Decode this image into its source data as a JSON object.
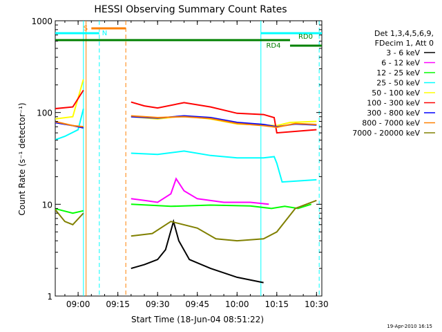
{
  "chart_data": {
    "type": "line",
    "title": "HESSI Observing Summary Count Rates",
    "xlabel": "Start Time (18-Jun-04 08:51:22)",
    "ylabel": "Count Rate (s⁻¹ detector⁻¹)",
    "yscale": "log",
    "ylim": [
      1,
      1000
    ],
    "xlim": [
      "08:51:22",
      "10:32:00"
    ],
    "x_ticks": [
      "09:00",
      "09:15",
      "09:30",
      "09:45",
      "10:00",
      "10:15",
      "10:30"
    ],
    "y_ticks": [
      "1",
      "10",
      "100",
      "1000"
    ],
    "footer": "19-Apr-2010 16:15",
    "legend": {
      "header": [
        "Det 1,3,4,5,6,9,",
        "FDecim 1, Att 0"
      ],
      "position": "right"
    },
    "series": [
      {
        "name": "3 - 6 keV",
        "color": "#000000",
        "points": [
          [
            "09:20",
            2.0
          ],
          [
            "09:25",
            2.2
          ],
          [
            "09:30",
            2.5
          ],
          [
            "09:33",
            3.2
          ],
          [
            "09:36",
            6.5
          ],
          [
            "09:38",
            4.0
          ],
          [
            "09:42",
            2.5
          ],
          [
            "09:50",
            2.0
          ],
          [
            "10:00",
            1.6
          ],
          [
            "10:10",
            1.4
          ]
        ]
      },
      {
        "name": "6 - 12 keV",
        "color": "#ff00ff",
        "points": [
          [
            "09:20",
            11.5
          ],
          [
            "09:25",
            11.0
          ],
          [
            "09:30",
            10.5
          ],
          [
            "09:35",
            13.0
          ],
          [
            "09:37",
            19.0
          ],
          [
            "09:40",
            14.0
          ],
          [
            "09:45",
            11.5
          ],
          [
            "09:55",
            10.5
          ],
          [
            "10:05",
            10.5
          ],
          [
            "10:12",
            10.0
          ]
        ]
      },
      {
        "name": "12 - 25 keV",
        "color": "#00ff00",
        "points": [
          [
            "08:51",
            9.0
          ],
          [
            "08:58",
            8.0
          ],
          [
            "09:02",
            8.5
          ],
          [
            "09:20",
            10.0
          ],
          [
            "09:35",
            9.5
          ],
          [
            "09:50",
            9.8
          ],
          [
            "10:05",
            9.6
          ],
          [
            "10:13",
            9.0
          ],
          [
            "10:18",
            9.5
          ],
          [
            "10:23",
            9.0
          ],
          [
            "10:28",
            10.0
          ]
        ]
      },
      {
        "name": "25 - 50 keV",
        "color": "#00ffff",
        "points": [
          [
            "08:51",
            50.0
          ],
          [
            "08:55",
            55.0
          ],
          [
            "09:00",
            65.0
          ],
          [
            "09:02",
            110.0
          ],
          [
            "09:20",
            36.0
          ],
          [
            "09:30",
            35.0
          ],
          [
            "09:40",
            38.0
          ],
          [
            "09:50",
            34.0
          ],
          [
            "10:00",
            32.0
          ],
          [
            "10:10",
            32.0
          ],
          [
            "10:14",
            33.0
          ],
          [
            "10:15",
            28.0
          ],
          [
            "10:17",
            17.5
          ],
          [
            "10:30",
            18.5
          ]
        ]
      },
      {
        "name": "50 - 100 keV",
        "color": "#ffff00",
        "points": [
          [
            "08:51",
            85.0
          ],
          [
            "08:58",
            90.0
          ],
          [
            "09:02",
            230.0
          ],
          [
            "09:20",
            90.0
          ],
          [
            "09:30",
            85.0
          ],
          [
            "09:40",
            92.0
          ],
          [
            "09:50",
            85.0
          ],
          [
            "10:00",
            75.0
          ],
          [
            "10:10",
            73.0
          ],
          [
            "10:15",
            72.0
          ],
          [
            "10:20",
            78.0
          ],
          [
            "10:30",
            80.0
          ]
        ]
      },
      {
        "name": "100 - 300 keV",
        "color": "#ff0000",
        "points": [
          [
            "08:51",
            110.0
          ],
          [
            "08:58",
            115.0
          ],
          [
            "09:02",
            175.0
          ],
          [
            "09:20",
            130.0
          ],
          [
            "09:25",
            118.0
          ],
          [
            "09:30",
            112.0
          ],
          [
            "09:40",
            128.0
          ],
          [
            "09:50",
            115.0
          ],
          [
            "10:00",
            98.0
          ],
          [
            "10:10",
            95.0
          ],
          [
            "10:14",
            88.0
          ],
          [
            "10:15",
            60.0
          ],
          [
            "10:30",
            65.0
          ]
        ]
      },
      {
        "name": "300 - 800 keV",
        "color": "#0000ff",
        "points": [
          [
            "08:51",
            78.0
          ],
          [
            "08:58",
            72.0
          ],
          [
            "09:02",
            68.0
          ],
          [
            "09:20",
            90.0
          ],
          [
            "09:30",
            87.0
          ],
          [
            "09:40",
            92.0
          ],
          [
            "09:50",
            88.0
          ],
          [
            "10:00",
            78.0
          ],
          [
            "10:10",
            74.0
          ],
          [
            "10:15",
            70.0
          ],
          [
            "10:22",
            75.0
          ],
          [
            "10:30",
            73.0
          ]
        ]
      },
      {
        "name": "800 - 7000 keV",
        "color": "#ff8000",
        "points": [
          [
            "08:51",
            80.0
          ],
          [
            "08:58",
            72.0
          ],
          [
            "09:02",
            70.0
          ],
          [
            "09:20",
            92.0
          ],
          [
            "09:30",
            88.0
          ],
          [
            "09:40",
            90.0
          ],
          [
            "09:50",
            86.0
          ],
          [
            "10:00",
            76.0
          ],
          [
            "10:10",
            72.0
          ],
          [
            "10:15",
            69.0
          ],
          [
            "10:22",
            76.0
          ],
          [
            "10:30",
            74.0
          ]
        ]
      },
      {
        "name": "7000 - 20000 keV",
        "color": "#808000",
        "points": [
          [
            "08:51",
            9.0
          ],
          [
            "08:55",
            6.5
          ],
          [
            "08:58",
            6.0
          ],
          [
            "09:02",
            8.0
          ],
          [
            "09:20",
            4.5
          ],
          [
            "09:28",
            4.8
          ],
          [
            "09:35",
            6.5
          ],
          [
            "09:45",
            5.5
          ],
          [
            "09:52",
            4.2
          ],
          [
            "10:00",
            4.0
          ],
          [
            "10:10",
            4.2
          ],
          [
            "10:15",
            5.0
          ],
          [
            "10:22",
            9.0
          ],
          [
            "10:30",
            11.0
          ]
        ]
      }
    ],
    "markers": [
      {
        "label": "S",
        "color": "#ff8000"
      },
      {
        "label": "N",
        "color": "#00ffff"
      },
      {
        "label": "RD0",
        "color": "#008000"
      },
      {
        "label": "RD4",
        "color": "#008000"
      }
    ]
  }
}
